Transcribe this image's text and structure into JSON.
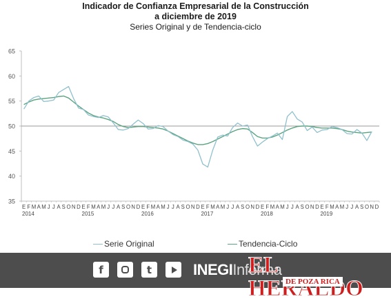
{
  "title": {
    "line1": "Indicador de Confianza Empresarial de la Construcción",
    "line2": "a diciembre de 2019",
    "subtitle": "Series Original y de Tendencia-ciclo"
  },
  "colors": {
    "original": "#8fc0cc",
    "trend": "#5aa37f",
    "axis": "#bfbfbf",
    "refline": "#9a9a9a",
    "footer": "#4d4d4d",
    "heraldo_red": "#cc1f1f"
  },
  "chart_data": {
    "type": "line",
    "ylim": [
      35,
      65
    ],
    "yticks": [
      35,
      40,
      45,
      50,
      55,
      60,
      65
    ],
    "reference_line": 50,
    "month_labels": [
      "E",
      "F",
      "M",
      "A",
      "M",
      "J",
      "J",
      "A",
      "S",
      "O",
      "N",
      "D"
    ],
    "years": [
      "2014",
      "2015",
      "2016",
      "2017",
      "2018",
      "2019"
    ],
    "series": [
      {
        "name": "Serie Original",
        "values": [
          53.4,
          55.0,
          55.7,
          56.0,
          54.9,
          55.0,
          55.2,
          56.7,
          57.3,
          57.9,
          55.5,
          53.6,
          53.3,
          52.2,
          51.9,
          51.7,
          52.1,
          51.8,
          50.6,
          49.3,
          49.2,
          49.5,
          50.4,
          51.2,
          50.5,
          49.4,
          49.5,
          50.1,
          49.9,
          49.0,
          48.3,
          47.9,
          47.2,
          46.9,
          46.4,
          45.2,
          42.4,
          41.8,
          45.2,
          47.8,
          48.2,
          48.0,
          49.7,
          50.6,
          50.0,
          50.2,
          47.9,
          46.0,
          46.8,
          47.5,
          48.0,
          48.6,
          47.3,
          51.9,
          52.9,
          51.4,
          50.8,
          49.1,
          49.8,
          48.7,
          49.2,
          49.3,
          49.9,
          49.7,
          49.3,
          48.5,
          48.4,
          49.3,
          48.6,
          47.1,
          48.9
        ]
      },
      {
        "name": "Tendencia-Ciclo",
        "values": [
          54.3,
          54.8,
          55.2,
          55.4,
          55.5,
          55.6,
          55.7,
          55.9,
          56.0,
          55.6,
          54.8,
          54.0,
          53.3,
          52.6,
          52.1,
          51.8,
          51.6,
          51.3,
          50.9,
          50.3,
          49.9,
          49.7,
          49.8,
          49.9,
          49.9,
          49.8,
          49.7,
          49.6,
          49.4,
          49.0,
          48.5,
          48.0,
          47.5,
          47.0,
          46.6,
          46.3,
          46.3,
          46.5,
          46.9,
          47.4,
          47.9,
          48.4,
          48.9,
          49.3,
          49.5,
          49.4,
          48.7,
          47.9,
          47.6,
          47.6,
          47.8,
          48.2,
          48.7,
          49.2,
          49.6,
          49.9,
          50.0,
          50.0,
          49.9,
          49.7,
          49.6,
          49.6,
          49.6,
          49.5,
          49.3,
          49.0,
          48.8,
          48.7,
          48.6,
          48.7,
          48.8
        ]
      }
    ]
  },
  "legend": {
    "original": "Serie Original",
    "trend": "Tendencia-Ciclo"
  },
  "footer": {
    "icons": [
      "facebook-icon",
      "instagram-icon",
      "twitter-icon",
      "youtube-icon"
    ],
    "fb_glyph": "f",
    "tw_glyph": "t",
    "inegi": "INEGI",
    "informa": "Informa",
    "heraldo": "EL HERALDO",
    "poza": "DE POZA RICA"
  }
}
